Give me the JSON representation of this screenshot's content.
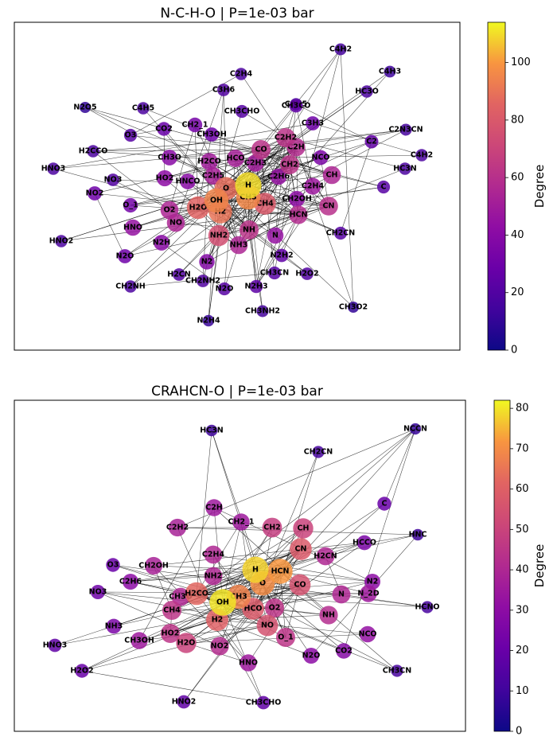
{
  "chart_data": [
    {
      "type": "network",
      "title": "N-C-H-O | P=1e-03 bar",
      "colorbar": {
        "label": "Degree",
        "range": [
          0,
          114
        ],
        "ticks": [
          "0",
          "20",
          "40",
          "60",
          "80",
          "100"
        ],
        "colormap": "plasma"
      },
      "nodes": [
        {
          "label": "H",
          "degree": 110
        },
        {
          "label": "O",
          "degree": 88
        },
        {
          "label": "OH",
          "degree": 95
        },
        {
          "label": "CH3",
          "degree": 96
        },
        {
          "label": "H2O",
          "degree": 85
        },
        {
          "label": "H2",
          "degree": 90
        },
        {
          "label": "CH4",
          "degree": 80
        },
        {
          "label": "NH2",
          "degree": 75
        },
        {
          "label": "NH",
          "degree": 62
        },
        {
          "label": "NH3",
          "degree": 55
        },
        {
          "label": "HCN",
          "degree": 58
        },
        {
          "label": "CN",
          "degree": 60
        },
        {
          "label": "N",
          "degree": 45
        },
        {
          "label": "CH",
          "degree": 55
        },
        {
          "label": "CH2",
          "degree": 62
        },
        {
          "label": "C2H2",
          "degree": 62
        },
        {
          "label": "C2H",
          "degree": 58
        },
        {
          "label": "CO",
          "degree": 62
        },
        {
          "label": "HCO",
          "degree": 52
        },
        {
          "label": "C2H3",
          "degree": 50
        },
        {
          "label": "C2H6",
          "degree": 45
        },
        {
          "label": "C2H4",
          "degree": 48
        },
        {
          "label": "CH2OH",
          "degree": 42
        },
        {
          "label": "C2H5",
          "degree": 52
        },
        {
          "label": "H2CO",
          "degree": 50
        },
        {
          "label": "HNCO",
          "degree": 40
        },
        {
          "label": "HO2",
          "degree": 42
        },
        {
          "label": "CH3O",
          "degree": 40
        },
        {
          "label": "O2",
          "degree": 55
        },
        {
          "label": "NO",
          "degree": 55
        },
        {
          "label": "HNO",
          "degree": 45
        },
        {
          "label": "N2H",
          "degree": 40
        },
        {
          "label": "N2",
          "degree": 38
        },
        {
          "label": "NCO",
          "degree": 35
        },
        {
          "label": "CH2_1",
          "degree": 33
        },
        {
          "label": "CH3OH",
          "degree": 30
        },
        {
          "label": "CO2",
          "degree": 28
        },
        {
          "label": "O3",
          "degree": 22
        },
        {
          "label": "NO2",
          "degree": 30
        },
        {
          "label": "O_1",
          "degree": 32
        },
        {
          "label": "N2O",
          "degree": 30
        },
        {
          "label": "NO3",
          "degree": 20
        },
        {
          "label": "HNO3",
          "degree": 18
        },
        {
          "label": "HNO2",
          "degree": 18
        },
        {
          "label": "N2O5",
          "degree": 10
        },
        {
          "label": "H2CCO",
          "degree": 18
        },
        {
          "label": "C4H5",
          "degree": 18
        },
        {
          "label": "C3H6",
          "degree": 20
        },
        {
          "label": "C2H4",
          "degree": 18
        },
        {
          "label": "C3H5",
          "degree": 18
        },
        {
          "label": "CH3CHO",
          "degree": 22
        },
        {
          "label": "CH3CO",
          "degree": 25
        },
        {
          "label": "C3H3",
          "degree": 30
        },
        {
          "label": "C4H2",
          "degree": 16
        },
        {
          "label": "HC3O",
          "degree": 18
        },
        {
          "label": "C4H3",
          "degree": 14
        },
        {
          "label": "C2",
          "degree": 26
        },
        {
          "label": "C2N3CN",
          "degree": 16
        },
        {
          "label": "C4H2",
          "degree": 18
        },
        {
          "label": "HC3N",
          "degree": 18
        },
        {
          "label": "C",
          "degree": 22
        },
        {
          "label": "CH2CN",
          "degree": 22
        },
        {
          "label": "N2H2",
          "degree": 25
        },
        {
          "label": "CH3CN",
          "degree": 22
        },
        {
          "label": "H2O2",
          "degree": 20
        },
        {
          "label": "CH3O2",
          "degree": 10
        },
        {
          "label": "N2H3",
          "degree": 24
        },
        {
          "label": "N2O",
          "degree": 22
        },
        {
          "label": "CH2NH2",
          "degree": 20
        },
        {
          "label": "H2CN",
          "degree": 20
        },
        {
          "label": "CH2NH",
          "degree": 18
        },
        {
          "label": "CH3NH2",
          "degree": 16
        },
        {
          "label": "N2H4",
          "degree": 12
        }
      ]
    },
    {
      "type": "network",
      "title": "CRAHCN-O | P=1e-03 bar",
      "colorbar": {
        "label": "Degree",
        "range": [
          0,
          82
        ],
        "ticks": [
          "0",
          "10",
          "20",
          "30",
          "40",
          "50",
          "60",
          "70",
          "80"
        ],
        "colormap": "plasma"
      },
      "nodes": [
        {
          "label": "H",
          "degree": 78
        },
        {
          "label": "HCN",
          "degree": 72
        },
        {
          "label": "O",
          "degree": 70
        },
        {
          "label": "OH",
          "degree": 80
        },
        {
          "label": "CH3",
          "degree": 68
        },
        {
          "label": "H2CO",
          "degree": 62
        },
        {
          "label": "HCO",
          "degree": 58
        },
        {
          "label": "H2",
          "degree": 60
        },
        {
          "label": "O2",
          "degree": 45
        },
        {
          "label": "NO",
          "degree": 55
        },
        {
          "label": "CO",
          "degree": 55
        },
        {
          "label": "CN",
          "degree": 58
        },
        {
          "label": "CH",
          "degree": 50
        },
        {
          "label": "CH2",
          "degree": 48
        },
        {
          "label": "H2CN",
          "degree": 40
        },
        {
          "label": "N",
          "degree": 40
        },
        {
          "label": "N_2D",
          "degree": 35
        },
        {
          "label": "N2",
          "degree": 30
        },
        {
          "label": "NH",
          "degree": 42
        },
        {
          "label": "NCO",
          "degree": 32
        },
        {
          "label": "O_1",
          "degree": 45
        },
        {
          "label": "CO2",
          "degree": 28
        },
        {
          "label": "N2O",
          "degree": 30
        },
        {
          "label": "HNO",
          "degree": 35
        },
        {
          "label": "NO2",
          "degree": 42
        },
        {
          "label": "H2O",
          "degree": 50
        },
        {
          "label": "HO2",
          "degree": 45
        },
        {
          "label": "CH4",
          "degree": 45
        },
        {
          "label": "CH3O",
          "degree": 40
        },
        {
          "label": "NH2",
          "degree": 40
        },
        {
          "label": "C2H4",
          "degree": 40
        },
        {
          "label": "CH2OH",
          "degree": 38
        },
        {
          "label": "C2H6",
          "degree": 30
        },
        {
          "label": "CH3OH",
          "degree": 35
        },
        {
          "label": "C2H2",
          "degree": 38
        },
        {
          "label": "C2H",
          "degree": 35
        },
        {
          "label": "CH2_1",
          "degree": 35
        },
        {
          "label": "HCCO",
          "degree": 25
        },
        {
          "label": "C",
          "degree": 20
        },
        {
          "label": "HNC",
          "degree": 10
        },
        {
          "label": "HCNO",
          "degree": 12
        },
        {
          "label": "CH3CN",
          "degree": 12
        },
        {
          "label": "NCCN",
          "degree": 8
        },
        {
          "label": "CH2CN",
          "degree": 12
        },
        {
          "label": "HC3N",
          "degree": 10
        },
        {
          "label": "O3",
          "degree": 20
        },
        {
          "label": "NO3",
          "degree": 22
        },
        {
          "label": "NH3",
          "degree": 25
        },
        {
          "label": "HNO3",
          "degree": 18
        },
        {
          "label": "H2O2",
          "degree": 20
        },
        {
          "label": "HNO2",
          "degree": 18
        },
        {
          "label": "CH3CHO",
          "degree": 18
        }
      ]
    }
  ]
}
